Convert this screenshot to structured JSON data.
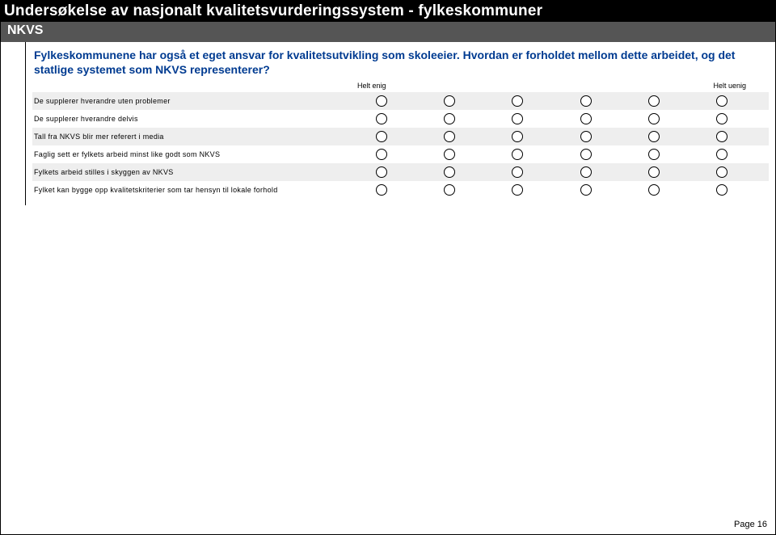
{
  "header": {
    "title": "Undersøkelse av nasjonalt kvalitetsvurderingssystem - fylkeskommuner",
    "subtitle": "NKVS"
  },
  "question": {
    "text": "Fylkeskommunene har også et eget ansvar for kvalitetsutvikling som skoleeier. Hvordan er forholdet mellom dette arbeidet, og det statlige systemet som NKVS representerer?"
  },
  "scale": {
    "left_label": "Helt enig",
    "right_label": "Helt uenig",
    "columns": 6
  },
  "matrix": {
    "rows": [
      {
        "label": "De supplerer hverandre uten problemer",
        "stripe": true
      },
      {
        "label": "De supplerer hverandre delvis",
        "stripe": false
      },
      {
        "label": "Tall fra NKVS blir mer referert i media",
        "stripe": true
      },
      {
        "label": "Faglig sett er fylkets arbeid minst like godt som NKVS",
        "stripe": false
      },
      {
        "label": "Fylkets arbeid stilles i skyggen av NKVS",
        "stripe": true
      },
      {
        "label": "Fylket kan bygge opp kvalitetskriterier som tar hensyn til lokale forhold",
        "stripe": false
      }
    ]
  },
  "footer": {
    "page_label": "Page 16"
  },
  "colors": {
    "header_black_bg": "#000000",
    "header_gray_bg": "#555555",
    "header_text": "#ffffff",
    "question_text": "#003b91",
    "stripe_bg": "#eeeeee",
    "page_bg": "#ffffff",
    "border": "#000000"
  }
}
